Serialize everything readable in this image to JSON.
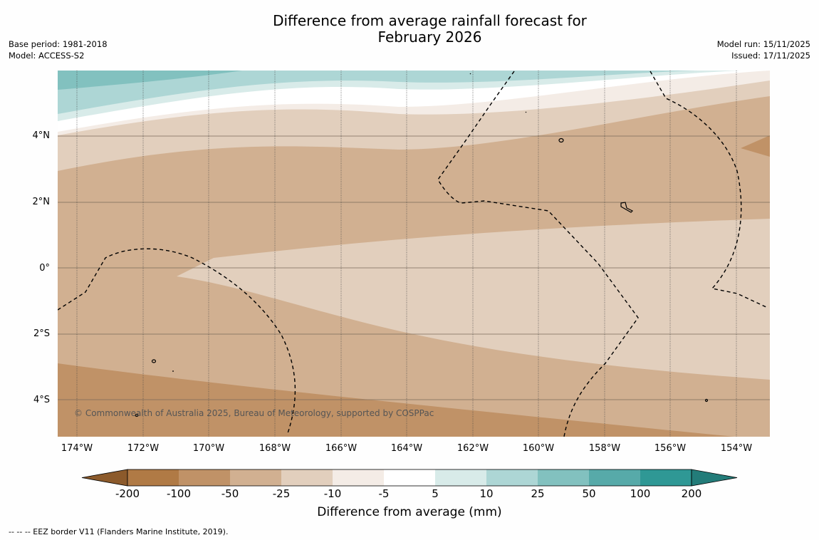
{
  "title_line1": "Difference from average rainfall forecast for",
  "title_line2": "February 2026",
  "meta_left": {
    "base_period": "Base period: 1981-2018",
    "model": "Model: ACCESS-S2"
  },
  "meta_right": {
    "model_run": "Model run: 15/11/2025",
    "issued": "Issued: 17/11/2025"
  },
  "map": {
    "lat_labels": [
      "4°N",
      "2°N",
      "0°",
      "2°S",
      "4°S"
    ],
    "lon_labels": [
      "174°W",
      "172°W",
      "170°W",
      "168°W",
      "166°W",
      "164°W",
      "162°W",
      "160°W",
      "158°W",
      "156°W",
      "154°W"
    ],
    "copyright": "© Commonwealth of Australia 2025, Bureau of Meteorology, supported by COSPPac"
  },
  "colorbar": {
    "ticks": [
      "-200",
      "-100",
      "-50",
      "-25",
      "-10",
      "-5",
      "5",
      "10",
      "25",
      "50",
      "100",
      "200"
    ],
    "colors": [
      "#8c5a2b",
      "#b07a45",
      "#c09267",
      "#d1b091",
      "#e2cfbd",
      "#f4ece6",
      "#ffffff",
      "#d8ebe9",
      "#add6d5",
      "#82c1bf",
      "#57aaa9",
      "#2f9895",
      "#237c79"
    ],
    "title": "Difference from average (mm)"
  },
  "footer": "--  --  -- EEZ border V11 (Flanders Marine Institute, 2019)."
}
